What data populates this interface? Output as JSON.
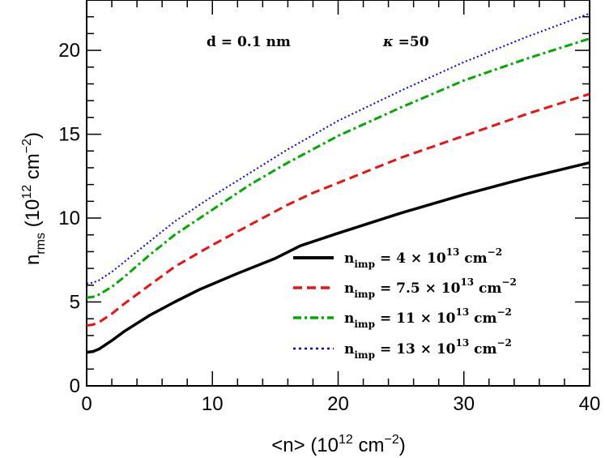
{
  "chart_data": {
    "type": "line",
    "xlabel": {
      "main": "<n>  (10",
      "sup": "12",
      "unit": " cm",
      "sup2": "−2",
      "close": ")"
    },
    "ylabel": {
      "main": "n",
      "sub": "rms",
      "rest": "  (10",
      "sup": "12",
      "unit": " cm",
      "sup2": "−2",
      "close": ")"
    },
    "xlim": [
      0,
      40
    ],
    "ylim": [
      0,
      23
    ],
    "xticks": [
      "0",
      "10",
      "20",
      "30",
      "40"
    ],
    "yticks": [
      "0",
      "5",
      "10",
      "15",
      "20"
    ],
    "annotations": {
      "d": "d = 0.1  nm",
      "kappa_sym": "κ",
      "kappa_val": " =50"
    },
    "series": [
      {
        "name": "n_imp = 4 × 10^13 cm^-2",
        "legend": {
          "n": "n",
          "sub": "imp",
          "eq": " = 4 × 10",
          "sup": "13",
          "unit": " cm",
          "sup2": "−2"
        },
        "color": "#000000",
        "style": "solid",
        "x": [
          0,
          0.5,
          1,
          2,
          3,
          5,
          7,
          9,
          12,
          15,
          17,
          20,
          25,
          30,
          35,
          40
        ],
        "y": [
          2.0,
          2.05,
          2.2,
          2.7,
          3.25,
          4.2,
          5.0,
          5.75,
          6.7,
          7.6,
          8.35,
          9.1,
          10.3,
          11.4,
          12.4,
          13.3
        ]
      },
      {
        "name": "n_imp = 7.5 × 10^13 cm^-2",
        "legend": {
          "n": "n",
          "sub": "imp",
          "eq": " = 7.5 × 10",
          "sup": "13",
          "unit": " cm",
          "sup2": "−2"
        },
        "color": "#ee1111",
        "style": "dashed",
        "x": [
          0,
          0.5,
          1,
          2,
          3,
          5,
          7,
          10,
          13,
          16,
          18,
          20,
          25,
          30,
          35,
          40
        ],
        "y": [
          3.6,
          3.65,
          3.8,
          4.3,
          4.9,
          6.0,
          7.1,
          8.4,
          9.6,
          10.8,
          11.5,
          12.1,
          13.6,
          14.9,
          16.2,
          17.4
        ]
      },
      {
        "name": "n_imp = 11 × 10^13 cm^-2",
        "legend": {
          "n": "n",
          "sub": "imp",
          "eq": " = 11 × 10",
          "sup": "13",
          "unit": " cm",
          "sup2": "−2"
        },
        "color": "#00aa00",
        "style": "dashdot",
        "x": [
          0,
          0.5,
          1,
          2,
          3,
          5,
          7,
          10,
          13,
          16,
          20,
          25,
          30,
          35,
          40
        ],
        "y": [
          5.25,
          5.3,
          5.45,
          5.9,
          6.5,
          7.8,
          9.0,
          10.5,
          12.0,
          13.3,
          14.9,
          16.6,
          18.2,
          19.5,
          20.7
        ]
      },
      {
        "name": "n_imp = 13 × 10^13 cm^-2",
        "legend": {
          "n": "n",
          "sub": "imp",
          "eq": " = 13 × 10",
          "sup": "13",
          "unit": " cm",
          "sup2": "−2"
        },
        "color": "#0000ee",
        "style": "dotted",
        "x": [
          0,
          0.5,
          1,
          2,
          3,
          5,
          7,
          10,
          13,
          16,
          20,
          25,
          30,
          35,
          40
        ],
        "y": [
          6.1,
          6.15,
          6.3,
          6.8,
          7.4,
          8.6,
          9.8,
          11.3,
          12.7,
          14.1,
          15.8,
          17.6,
          19.3,
          20.8,
          22.2
        ]
      }
    ]
  }
}
